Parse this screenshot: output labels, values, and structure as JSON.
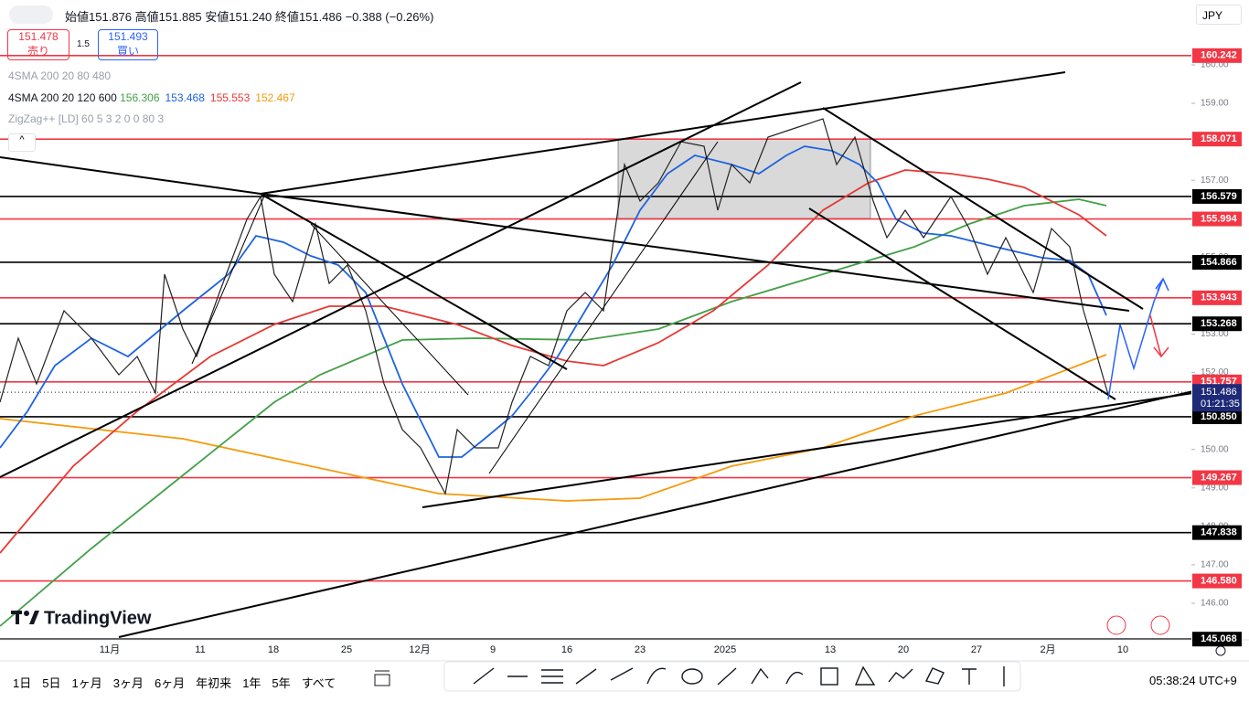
{
  "header": {
    "open_label": "始値",
    "open": "151.876",
    "high_label": "高値",
    "high": "151.885",
    "low_label": "安値",
    "low": "151.240",
    "close_label": "終値",
    "close": "151.486",
    "change": "−0.388 (−0.26%)"
  },
  "trade": {
    "sell_price": "151.478",
    "sell_label": "売り",
    "spread": "1.5",
    "buy_price": "151.493",
    "buy_label": "買い"
  },
  "indicators": [
    {
      "name": "4SMA 200 20 80 480"
    },
    {
      "name": "4SMA 200 20 120 600",
      "values": [
        {
          "text": "156.306",
          "color": "#43a047"
        },
        {
          "text": "153.468",
          "color": "#1e63e0"
        },
        {
          "text": "155.553",
          "color": "#e53935"
        },
        {
          "text": "152.467",
          "color": "#f59a0b"
        }
      ]
    },
    {
      "name": "ZigZag++ [LD] 60 5 3 2 0 0 80 3"
    }
  ],
  "currency": "JPY",
  "price_axis": {
    "ticks": [
      {
        "value": 160,
        "label": "160.00"
      },
      {
        "value": 159,
        "label": "159.00"
      },
      {
        "value": 158,
        "label": "158.00"
      },
      {
        "value": 157,
        "label": "157.00"
      },
      {
        "value": 156,
        "label": "156.00"
      },
      {
        "value": 155,
        "label": "155.00"
      },
      {
        "value": 154,
        "label": "154.00"
      },
      {
        "value": 153,
        "label": "153.00"
      },
      {
        "value": 152,
        "label": "152.00"
      },
      {
        "value": 151,
        "label": "151.00"
      },
      {
        "value": 150,
        "label": "150.00"
      },
      {
        "value": 149,
        "label": "149.00"
      },
      {
        "value": 148,
        "label": "148.00"
      },
      {
        "value": 147,
        "label": "147.00"
      },
      {
        "value": 146,
        "label": "146.00"
      }
    ]
  },
  "levels": [
    {
      "value": 160.242,
      "color": "#f23645"
    },
    {
      "value": 158.071,
      "color": "#f23645"
    },
    {
      "value": 156.579,
      "color": "#000000"
    },
    {
      "value": 155.994,
      "color": "#f23645"
    },
    {
      "value": 154.866,
      "color": "#000000"
    },
    {
      "value": 153.943,
      "color": "#f23645"
    },
    {
      "value": 153.268,
      "color": "#000000"
    },
    {
      "value": 151.757,
      "color": "#f23645"
    },
    {
      "value": 150.85,
      "label": "150.850",
      "color": "#000000"
    },
    {
      "value": 149.267,
      "color": "#f23645"
    },
    {
      "value": 147.838,
      "color": "#000000"
    },
    {
      "value": 146.58,
      "label": "146.580",
      "color": "#f23645"
    },
    {
      "value": 145.068,
      "color": "#000000"
    }
  ],
  "current": {
    "value": 151.486,
    "countdown": "01:21:35"
  },
  "time_axis": [
    "11月",
    "11",
    "18",
    "25",
    "12月",
    "9",
    "16",
    "23",
    "2025",
    "13",
    "20",
    "27",
    "2月",
    "10"
  ],
  "logo": "TradingView",
  "ranges": [
    "1日",
    "5日",
    "1ヶ月",
    "3ヶ月",
    "6ヶ月",
    "年初来",
    "1年",
    "5年",
    "すべて"
  ],
  "clock": "05:38:24 UTC+9"
}
